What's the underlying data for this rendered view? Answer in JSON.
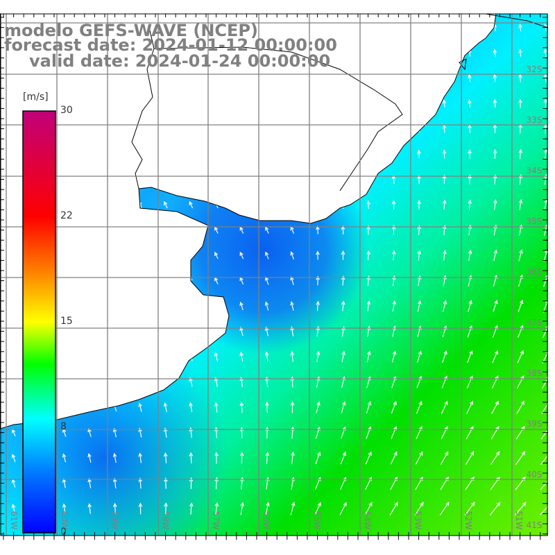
{
  "title": {
    "model": "modelo GEFS-WAVE (NCEP)",
    "forecast": "forecast date: 2024-01-12 00:00:00",
    "valid": "valid date: 2024-01-24 00:00:00"
  },
  "colorbar": {
    "unit": "[m/s]",
    "ticks": [
      "30",
      "22",
      "15",
      "8",
      "0"
    ],
    "colors": [
      "#0000ff",
      "#00a0ff",
      "#00ffff",
      "#00ff00",
      "#ffff00",
      "#ff8000",
      "#ff0000",
      "#c0007a"
    ]
  },
  "axes": {
    "lon_labels": [
      "61W",
      "60W",
      "59W",
      "58W",
      "57W",
      "56W",
      "55W",
      "54W",
      "53W",
      "52W",
      "51W"
    ],
    "lat_labels": [
      "32S",
      "33S",
      "34S",
      "35S",
      "36S",
      "37S",
      "38S",
      "39S",
      "40S",
      "41S"
    ]
  },
  "colors": {
    "grid": "#808080",
    "land": "#ffffff",
    "coast": "#000000",
    "arrow": "#ffffff"
  }
}
